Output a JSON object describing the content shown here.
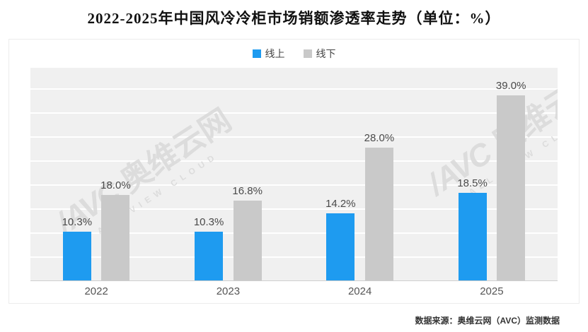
{
  "title": "2022-2025年中国风冷冷柜市场销额渗透率走势（单位：%）",
  "legend": [
    {
      "label": "线上",
      "color": "#1e9bf0"
    },
    {
      "label": "线下",
      "color": "#c9c9c9"
    }
  ],
  "chart_data": {
    "type": "bar",
    "title": "2022-2025年中国风冷冷柜市场销额渗透率走势（单位：%）",
    "categories": [
      "2022",
      "2023",
      "2024",
      "2025"
    ],
    "series": [
      {
        "name": "线上",
        "color": "#1e9bf0",
        "values": [
          10.3,
          10.3,
          14.2,
          18.5
        ],
        "labels": [
          "10.3%",
          "10.3%",
          "14.2%",
          "18.5%"
        ]
      },
      {
        "name": "线下",
        "color": "#c9c9c9",
        "values": [
          18.0,
          16.8,
          28.0,
          39.0
        ],
        "labels": [
          "18.0%",
          "16.8%",
          "28.0%",
          "39.0%"
        ]
      }
    ],
    "xlabel": "",
    "ylabel": "",
    "ylim": [
      0,
      45
    ],
    "grid": true,
    "legend_position": "top"
  },
  "watermark": {
    "brand": "AVC",
    "name": "奥维云网",
    "tagline": "ALL VIEW CLOUD"
  },
  "source": "数据来源：奥维云网（AVC）监测数据"
}
